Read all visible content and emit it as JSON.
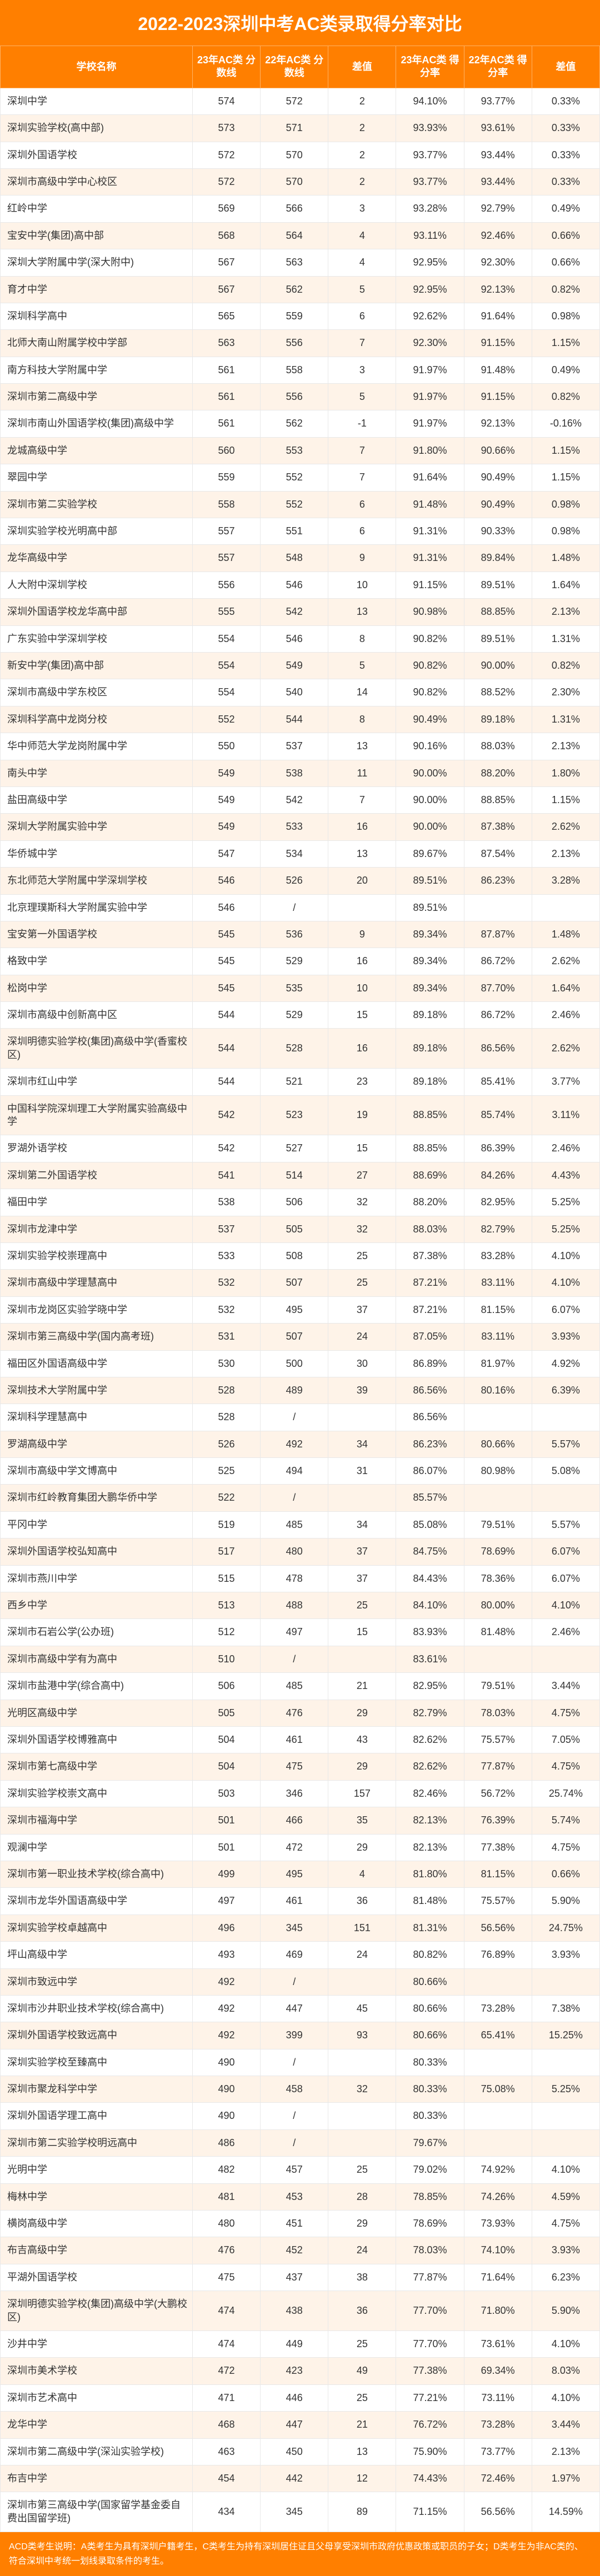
{
  "title": "2022-2023深圳中考AC类录取得分率对比",
  "headers": {
    "name": "学校名称",
    "score23": "23年AC类\n分数线",
    "score22": "22年AC类\n分数线",
    "diff1": "差值",
    "rate23": "23年AC类\n得分率",
    "rate22": "22年AC类\n得分率",
    "diff2": "差值"
  },
  "footer": "ACD类考生说明：A类考生为具有深圳户籍考生，C类考生为持有深圳居住证且父母享受深圳市政府优惠政策或职员的子女；D类考生为非AC类的、符合深圳中考统一划线录取条件的考生。",
  "rows": [
    {
      "name": "深圳中学",
      "s23": "574",
      "s22": "572",
      "d1": "2",
      "r23": "94.10%",
      "r22": "93.77%",
      "d2": "0.33%"
    },
    {
      "name": "深圳实验学校(高中部)",
      "s23": "573",
      "s22": "571",
      "d1": "2",
      "r23": "93.93%",
      "r22": "93.61%",
      "d2": "0.33%"
    },
    {
      "name": "深圳外国语学校",
      "s23": "572",
      "s22": "570",
      "d1": "2",
      "r23": "93.77%",
      "r22": "93.44%",
      "d2": "0.33%"
    },
    {
      "name": "深圳市高级中学中心校区",
      "s23": "572",
      "s22": "570",
      "d1": "2",
      "r23": "93.77%",
      "r22": "93.44%",
      "d2": "0.33%"
    },
    {
      "name": "红岭中学",
      "s23": "569",
      "s22": "566",
      "d1": "3",
      "r23": "93.28%",
      "r22": "92.79%",
      "d2": "0.49%"
    },
    {
      "name": "宝安中学(集团)高中部",
      "s23": "568",
      "s22": "564",
      "d1": "4",
      "r23": "93.11%",
      "r22": "92.46%",
      "d2": "0.66%"
    },
    {
      "name": "深圳大学附属中学(深大附中)",
      "s23": "567",
      "s22": "563",
      "d1": "4",
      "r23": "92.95%",
      "r22": "92.30%",
      "d2": "0.66%"
    },
    {
      "name": "育才中学",
      "s23": "567",
      "s22": "562",
      "d1": "5",
      "r23": "92.95%",
      "r22": "92.13%",
      "d2": "0.82%"
    },
    {
      "name": "深圳科学高中",
      "s23": "565",
      "s22": "559",
      "d1": "6",
      "r23": "92.62%",
      "r22": "91.64%",
      "d2": "0.98%"
    },
    {
      "name": "北师大南山附属学校中学部",
      "s23": "563",
      "s22": "556",
      "d1": "7",
      "r23": "92.30%",
      "r22": "91.15%",
      "d2": "1.15%"
    },
    {
      "name": "南方科技大学附属中学",
      "s23": "561",
      "s22": "558",
      "d1": "3",
      "r23": "91.97%",
      "r22": "91.48%",
      "d2": "0.49%"
    },
    {
      "name": "深圳市第二高级中学",
      "s23": "561",
      "s22": "556",
      "d1": "5",
      "r23": "91.97%",
      "r22": "91.15%",
      "d2": "0.82%"
    },
    {
      "name": "深圳市南山外国语学校(集团)高级中学",
      "s23": "561",
      "s22": "562",
      "d1": "-1",
      "r23": "91.97%",
      "r22": "92.13%",
      "d2": "-0.16%"
    },
    {
      "name": "龙城高级中学",
      "s23": "560",
      "s22": "553",
      "d1": "7",
      "r23": "91.80%",
      "r22": "90.66%",
      "d2": "1.15%"
    },
    {
      "name": "翠园中学",
      "s23": "559",
      "s22": "552",
      "d1": "7",
      "r23": "91.64%",
      "r22": "90.49%",
      "d2": "1.15%"
    },
    {
      "name": "深圳市第二实验学校",
      "s23": "558",
      "s22": "552",
      "d1": "6",
      "r23": "91.48%",
      "r22": "90.49%",
      "d2": "0.98%"
    },
    {
      "name": "深圳实验学校光明高中部",
      "s23": "557",
      "s22": "551",
      "d1": "6",
      "r23": "91.31%",
      "r22": "90.33%",
      "d2": "0.98%"
    },
    {
      "name": "龙华高级中学",
      "s23": "557",
      "s22": "548",
      "d1": "9",
      "r23": "91.31%",
      "r22": "89.84%",
      "d2": "1.48%"
    },
    {
      "name": "人大附中深圳学校",
      "s23": "556",
      "s22": "546",
      "d1": "10",
      "r23": "91.15%",
      "r22": "89.51%",
      "d2": "1.64%"
    },
    {
      "name": "深圳外国语学校龙华高中部",
      "s23": "555",
      "s22": "542",
      "d1": "13",
      "r23": "90.98%",
      "r22": "88.85%",
      "d2": "2.13%"
    },
    {
      "name": "广东实验中学深圳学校",
      "s23": "554",
      "s22": "546",
      "d1": "8",
      "r23": "90.82%",
      "r22": "89.51%",
      "d2": "1.31%"
    },
    {
      "name": "新安中学(集团)高中部",
      "s23": "554",
      "s22": "549",
      "d1": "5",
      "r23": "90.82%",
      "r22": "90.00%",
      "d2": "0.82%"
    },
    {
      "name": "深圳市高级中学东校区",
      "s23": "554",
      "s22": "540",
      "d1": "14",
      "r23": "90.82%",
      "r22": "88.52%",
      "d2": "2.30%"
    },
    {
      "name": "深圳科学高中龙岗分校",
      "s23": "552",
      "s22": "544",
      "d1": "8",
      "r23": "90.49%",
      "r22": "89.18%",
      "d2": "1.31%"
    },
    {
      "name": "华中师范大学龙岗附属中学",
      "s23": "550",
      "s22": "537",
      "d1": "13",
      "r23": "90.16%",
      "r22": "88.03%",
      "d2": "2.13%"
    },
    {
      "name": "南头中学",
      "s23": "549",
      "s22": "538",
      "d1": "11",
      "r23": "90.00%",
      "r22": "88.20%",
      "d2": "1.80%"
    },
    {
      "name": "盐田高级中学",
      "s23": "549",
      "s22": "542",
      "d1": "7",
      "r23": "90.00%",
      "r22": "88.85%",
      "d2": "1.15%"
    },
    {
      "name": "深圳大学附属实验中学",
      "s23": "549",
      "s22": "533",
      "d1": "16",
      "r23": "90.00%",
      "r22": "87.38%",
      "d2": "2.62%"
    },
    {
      "name": "华侨城中学",
      "s23": "547",
      "s22": "534",
      "d1": "13",
      "r23": "89.67%",
      "r22": "87.54%",
      "d2": "2.13%"
    },
    {
      "name": "东北师范大学附属中学深圳学校",
      "s23": "546",
      "s22": "526",
      "d1": "20",
      "r23": "89.51%",
      "r22": "86.23%",
      "d2": "3.28%"
    },
    {
      "name": "北京理璞斯科大学附属实验中学",
      "s23": "546",
      "s22": "/",
      "d1": "",
      "r23": "89.51%",
      "r22": "",
      "d2": ""
    },
    {
      "name": "宝安第一外国语学校",
      "s23": "545",
      "s22": "536",
      "d1": "9",
      "r23": "89.34%",
      "r22": "87.87%",
      "d2": "1.48%"
    },
    {
      "name": "格致中学",
      "s23": "545",
      "s22": "529",
      "d1": "16",
      "r23": "89.34%",
      "r22": "86.72%",
      "d2": "2.62%"
    },
    {
      "name": "松岗中学",
      "s23": "545",
      "s22": "535",
      "d1": "10",
      "r23": "89.34%",
      "r22": "87.70%",
      "d2": "1.64%"
    },
    {
      "name": "深圳市高级中创新高中区",
      "s23": "544",
      "s22": "529",
      "d1": "15",
      "r23": "89.18%",
      "r22": "86.72%",
      "d2": "2.46%"
    },
    {
      "name": "深圳明德实验学校(集团)高级中学(香蜜校区)",
      "s23": "544",
      "s22": "528",
      "d1": "16",
      "r23": "89.18%",
      "r22": "86.56%",
      "d2": "2.62%"
    },
    {
      "name": "深圳市红山中学",
      "s23": "544",
      "s22": "521",
      "d1": "23",
      "r23": "89.18%",
      "r22": "85.41%",
      "d2": "3.77%"
    },
    {
      "name": "中国科学院深圳理工大学附属实验高级中学",
      "s23": "542",
      "s22": "523",
      "d1": "19",
      "r23": "88.85%",
      "r22": "85.74%",
      "d2": "3.11%"
    },
    {
      "name": "罗湖外语学校",
      "s23": "542",
      "s22": "527",
      "d1": "15",
      "r23": "88.85%",
      "r22": "86.39%",
      "d2": "2.46%"
    },
    {
      "name": "深圳第二外国语学校",
      "s23": "541",
      "s22": "514",
      "d1": "27",
      "r23": "88.69%",
      "r22": "84.26%",
      "d2": "4.43%"
    },
    {
      "name": "福田中学",
      "s23": "538",
      "s22": "506",
      "d1": "32",
      "r23": "88.20%",
      "r22": "82.95%",
      "d2": "5.25%"
    },
    {
      "name": "深圳市龙津中学",
      "s23": "537",
      "s22": "505",
      "d1": "32",
      "r23": "88.03%",
      "r22": "82.79%",
      "d2": "5.25%"
    },
    {
      "name": "深圳实验学校崇理高中",
      "s23": "533",
      "s22": "508",
      "d1": "25",
      "r23": "87.38%",
      "r22": "83.28%",
      "d2": "4.10%"
    },
    {
      "name": "深圳市高级中学理慧高中",
      "s23": "532",
      "s22": "507",
      "d1": "25",
      "r23": "87.21%",
      "r22": "83.11%",
      "d2": "4.10%"
    },
    {
      "name": "深圳市龙岗区实验学晓中学",
      "s23": "532",
      "s22": "495",
      "d1": "37",
      "r23": "87.21%",
      "r22": "81.15%",
      "d2": "6.07%"
    },
    {
      "name": "深圳市第三高级中学(国内高考班)",
      "s23": "531",
      "s22": "507",
      "d1": "24",
      "r23": "87.05%",
      "r22": "83.11%",
      "d2": "3.93%"
    },
    {
      "name": "福田区外国语高级中学",
      "s23": "530",
      "s22": "500",
      "d1": "30",
      "r23": "86.89%",
      "r22": "81.97%",
      "d2": "4.92%"
    },
    {
      "name": "深圳技术大学附属中学",
      "s23": "528",
      "s22": "489",
      "d1": "39",
      "r23": "86.56%",
      "r22": "80.16%",
      "d2": "6.39%"
    },
    {
      "name": "深圳科学理慧高中",
      "s23": "528",
      "s22": "/",
      "d1": "",
      "r23": "86.56%",
      "r22": "",
      "d2": ""
    },
    {
      "name": "罗湖高级中学",
      "s23": "526",
      "s22": "492",
      "d1": "34",
      "r23": "86.23%",
      "r22": "80.66%",
      "d2": "5.57%"
    },
    {
      "name": "深圳市高级中学文博高中",
      "s23": "525",
      "s22": "494",
      "d1": "31",
      "r23": "86.07%",
      "r22": "80.98%",
      "d2": "5.08%"
    },
    {
      "name": "深圳市红岭教育集团大鹏华侨中学",
      "s23": "522",
      "s22": "/",
      "d1": "",
      "r23": "85.57%",
      "r22": "",
      "d2": ""
    },
    {
      "name": "平冈中学",
      "s23": "519",
      "s22": "485",
      "d1": "34",
      "r23": "85.08%",
      "r22": "79.51%",
      "d2": "5.57%"
    },
    {
      "name": "深圳外国语学校弘知高中",
      "s23": "517",
      "s22": "480",
      "d1": "37",
      "r23": "84.75%",
      "r22": "78.69%",
      "d2": "6.07%"
    },
    {
      "name": "深圳市燕川中学",
      "s23": "515",
      "s22": "478",
      "d1": "37",
      "r23": "84.43%",
      "r22": "78.36%",
      "d2": "6.07%"
    },
    {
      "name": "西乡中学",
      "s23": "513",
      "s22": "488",
      "d1": "25",
      "r23": "84.10%",
      "r22": "80.00%",
      "d2": "4.10%"
    },
    {
      "name": "深圳市石岩公学(公办班)",
      "s23": "512",
      "s22": "497",
      "d1": "15",
      "r23": "83.93%",
      "r22": "81.48%",
      "d2": "2.46%"
    },
    {
      "name": "深圳市高级中学有为高中",
      "s23": "510",
      "s22": "/",
      "d1": "",
      "r23": "83.61%",
      "r22": "",
      "d2": ""
    },
    {
      "name": "深圳市盐港中学(综合高中)",
      "s23": "506",
      "s22": "485",
      "d1": "21",
      "r23": "82.95%",
      "r22": "79.51%",
      "d2": "3.44%"
    },
    {
      "name": "光明区高级中学",
      "s23": "505",
      "s22": "476",
      "d1": "29",
      "r23": "82.79%",
      "r22": "78.03%",
      "d2": "4.75%"
    },
    {
      "name": "深圳外国语学校博雅高中",
      "s23": "504",
      "s22": "461",
      "d1": "43",
      "r23": "82.62%",
      "r22": "75.57%",
      "d2": "7.05%"
    },
    {
      "name": "深圳市第七高级中学",
      "s23": "504",
      "s22": "475",
      "d1": "29",
      "r23": "82.62%",
      "r22": "77.87%",
      "d2": "4.75%"
    },
    {
      "name": "深圳实验学校崇文高中",
      "s23": "503",
      "s22": "346",
      "d1": "157",
      "r23": "82.46%",
      "r22": "56.72%",
      "d2": "25.74%"
    },
    {
      "name": "深圳市福海中学",
      "s23": "501",
      "s22": "466",
      "d1": "35",
      "r23": "82.13%",
      "r22": "76.39%",
      "d2": "5.74%"
    },
    {
      "name": "观澜中学",
      "s23": "501",
      "s22": "472",
      "d1": "29",
      "r23": "82.13%",
      "r22": "77.38%",
      "d2": "4.75%"
    },
    {
      "name": "深圳市第一职业技术学校(综合高中)",
      "s23": "499",
      "s22": "495",
      "d1": "4",
      "r23": "81.80%",
      "r22": "81.15%",
      "d2": "0.66%"
    },
    {
      "name": "深圳市龙华外国语高级中学",
      "s23": "497",
      "s22": "461",
      "d1": "36",
      "r23": "81.48%",
      "r22": "75.57%",
      "d2": "5.90%"
    },
    {
      "name": "深圳实验学校卓越高中",
      "s23": "496",
      "s22": "345",
      "d1": "151",
      "r23": "81.31%",
      "r22": "56.56%",
      "d2": "24.75%"
    },
    {
      "name": "坪山高级中学",
      "s23": "493",
      "s22": "469",
      "d1": "24",
      "r23": "80.82%",
      "r22": "76.89%",
      "d2": "3.93%"
    },
    {
      "name": "深圳市致远中学",
      "s23": "492",
      "s22": "/",
      "d1": "",
      "r23": "80.66%",
      "r22": "",
      "d2": ""
    },
    {
      "name": "深圳市沙井职业技术学校(综合高中)",
      "s23": "492",
      "s22": "447",
      "d1": "45",
      "r23": "80.66%",
      "r22": "73.28%",
      "d2": "7.38%"
    },
    {
      "name": "深圳外国语学校致远高中",
      "s23": "492",
      "s22": "399",
      "d1": "93",
      "r23": "80.66%",
      "r22": "65.41%",
      "d2": "15.25%"
    },
    {
      "name": "深圳实验学校至臻高中",
      "s23": "490",
      "s22": "/",
      "d1": "",
      "r23": "80.33%",
      "r22": "",
      "d2": ""
    },
    {
      "name": "深圳市聚龙科学中学",
      "s23": "490",
      "s22": "458",
      "d1": "32",
      "r23": "80.33%",
      "r22": "75.08%",
      "d2": "5.25%"
    },
    {
      "name": "深圳外国语学理工高中",
      "s23": "490",
      "s22": "/",
      "d1": "",
      "r23": "80.33%",
      "r22": "",
      "d2": ""
    },
    {
      "name": "深圳市第二实验学校明远高中",
      "s23": "486",
      "s22": "/",
      "d1": "",
      "r23": "79.67%",
      "r22": "",
      "d2": ""
    },
    {
      "name": "光明中学",
      "s23": "482",
      "s22": "457",
      "d1": "25",
      "r23": "79.02%",
      "r22": "74.92%",
      "d2": "4.10%"
    },
    {
      "name": "梅林中学",
      "s23": "481",
      "s22": "453",
      "d1": "28",
      "r23": "78.85%",
      "r22": "74.26%",
      "d2": "4.59%"
    },
    {
      "name": "横岗高级中学",
      "s23": "480",
      "s22": "451",
      "d1": "29",
      "r23": "78.69%",
      "r22": "73.93%",
      "d2": "4.75%"
    },
    {
      "name": "布吉高级中学",
      "s23": "476",
      "s22": "452",
      "d1": "24",
      "r23": "78.03%",
      "r22": "74.10%",
      "d2": "3.93%"
    },
    {
      "name": "平湖外国语学校",
      "s23": "475",
      "s22": "437",
      "d1": "38",
      "r23": "77.87%",
      "r22": "71.64%",
      "d2": "6.23%"
    },
    {
      "name": "深圳明德实验学校(集团)高级中学(大鹏校区)",
      "s23": "474",
      "s22": "438",
      "d1": "36",
      "r23": "77.70%",
      "r22": "71.80%",
      "d2": "5.90%"
    },
    {
      "name": "沙井中学",
      "s23": "474",
      "s22": "449",
      "d1": "25",
      "r23": "77.70%",
      "r22": "73.61%",
      "d2": "4.10%"
    },
    {
      "name": "深圳市美术学校",
      "s23": "472",
      "s22": "423",
      "d1": "49",
      "r23": "77.38%",
      "r22": "69.34%",
      "d2": "8.03%"
    },
    {
      "name": "深圳市艺术高中",
      "s23": "471",
      "s22": "446",
      "d1": "25",
      "r23": "77.21%",
      "r22": "73.11%",
      "d2": "4.10%"
    },
    {
      "name": "龙华中学",
      "s23": "468",
      "s22": "447",
      "d1": "21",
      "r23": "76.72%",
      "r22": "73.28%",
      "d2": "3.44%"
    },
    {
      "name": "深圳市第二高级中学(深汕实验学校)",
      "s23": "463",
      "s22": "450",
      "d1": "13",
      "r23": "75.90%",
      "r22": "73.77%",
      "d2": "2.13%"
    },
    {
      "name": "布吉中学",
      "s23": "454",
      "s22": "442",
      "d1": "12",
      "r23": "74.43%",
      "r22": "72.46%",
      "d2": "1.97%"
    },
    {
      "name": "深圳市第三高级中学(国家留学基金委自费出国留学班)",
      "s23": "434",
      "s22": "345",
      "d1": "89",
      "r23": "71.15%",
      "r22": "56.56%",
      "d2": "14.59%"
    }
  ]
}
